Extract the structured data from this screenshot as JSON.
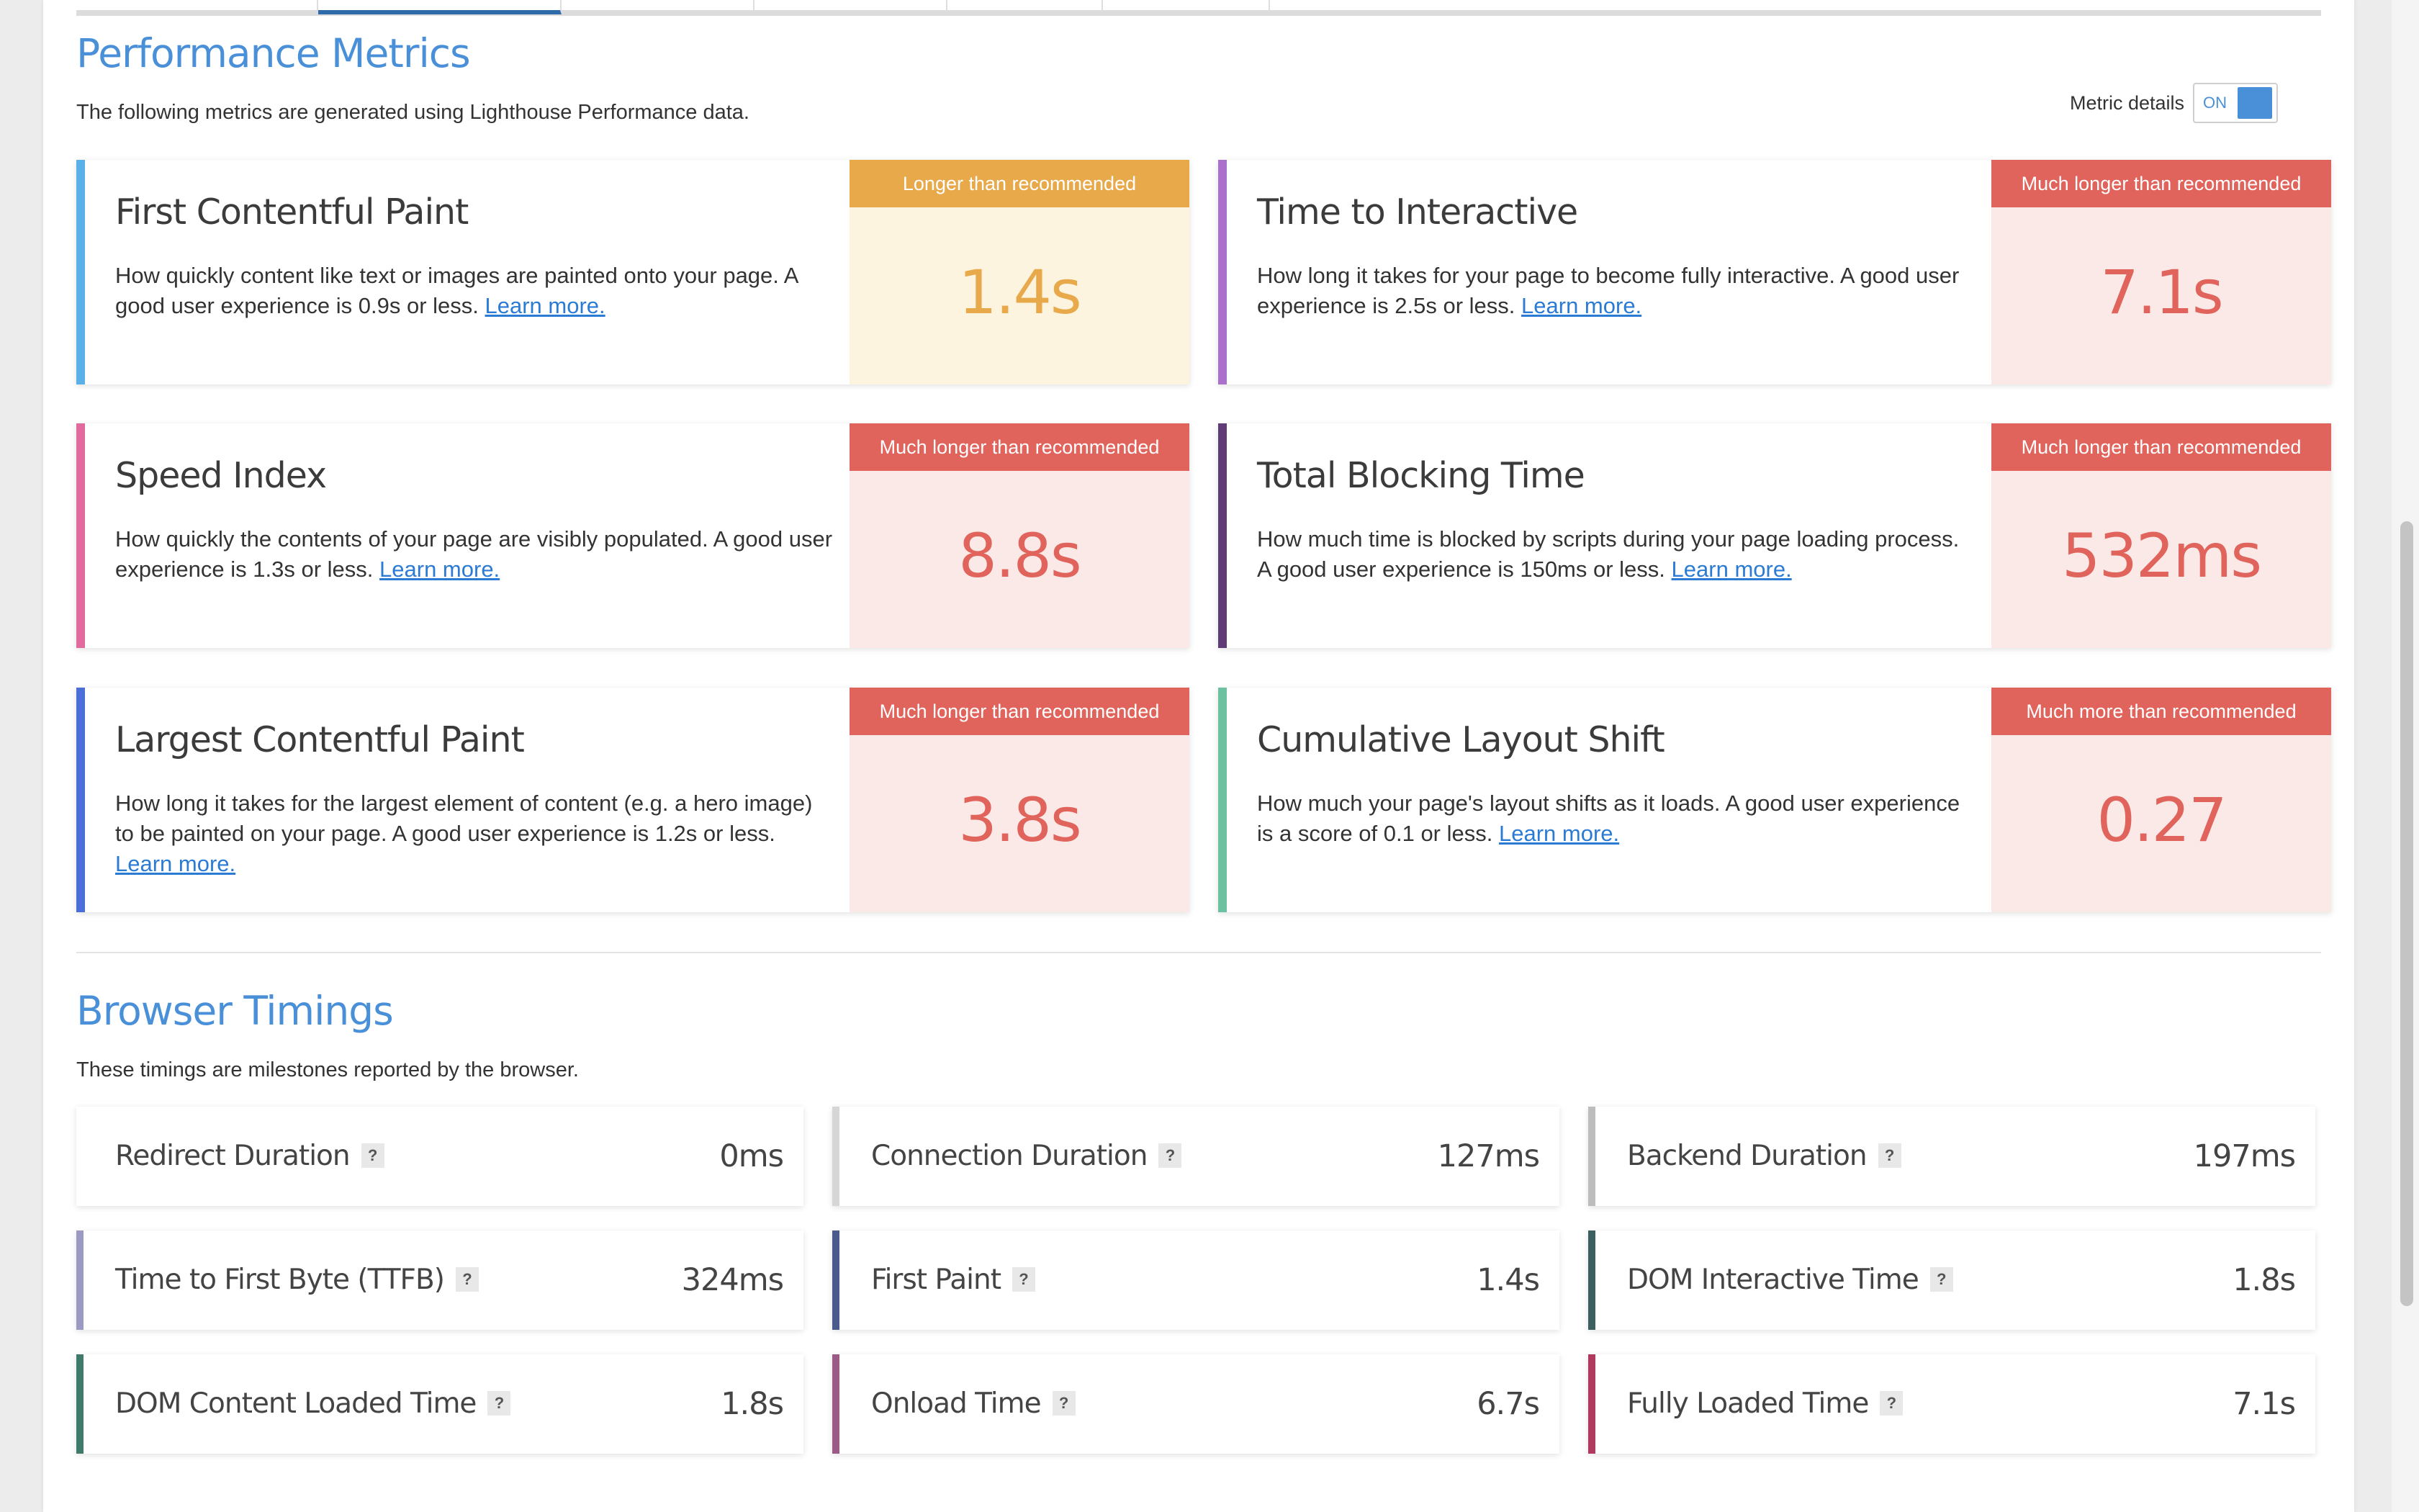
{
  "performance": {
    "title": "Performance Metrics",
    "description": "The following metrics are generated using Lighthouse Performance data.",
    "toggle": {
      "label": "Metric details",
      "state": "ON"
    },
    "learn_more": "Learn more.",
    "metrics": [
      {
        "title": "First Contentful Paint",
        "description": "How quickly content like text or images are painted onto your page. A good user experience is 0.9s or less.",
        "badge": "Longer than recommended",
        "value": "1.4s"
      },
      {
        "title": "Time to Interactive",
        "description": "How long it takes for your page to become fully interactive. A good user experience is 2.5s or less.",
        "badge": "Much longer than recommended",
        "value": "7.1s"
      },
      {
        "title": "Speed Index",
        "description": "How quickly the contents of your page are visibly populated. A good user experience is 1.3s or less.",
        "badge": "Much longer than recommended",
        "value": "8.8s"
      },
      {
        "title": "Total Blocking Time",
        "description": "How much time is blocked by scripts during your page loading process. A good user experience is 150ms or less.",
        "badge": "Much longer than recommended",
        "value": "532ms"
      },
      {
        "title": "Largest Contentful Paint",
        "description": "How long it takes for the largest element of content (e.g. a hero image) to be painted on your page. A good user experience is 1.2s or less.",
        "badge": "Much longer than recommended",
        "value": "3.8s"
      },
      {
        "title": "Cumulative Layout Shift",
        "description": "How much your page's layout shifts as it loads. A good user experience is a score of 0.1 or less.",
        "badge": "Much more than recommended",
        "value": "0.27"
      }
    ]
  },
  "timings": {
    "title": "Browser Timings",
    "description": "These timings are milestones reported by the browser.",
    "help_glyph": "?",
    "items": [
      {
        "name": "Redirect Duration",
        "value": "0ms"
      },
      {
        "name": "Connection Duration",
        "value": "127ms"
      },
      {
        "name": "Backend Duration",
        "value": "197ms"
      },
      {
        "name": "Time to First Byte (TTFB)",
        "value": "324ms"
      },
      {
        "name": "First Paint",
        "value": "1.4s"
      },
      {
        "name": "DOM Interactive Time",
        "value": "1.8s"
      },
      {
        "name": "DOM Content Loaded Time",
        "value": "1.8s"
      },
      {
        "name": "Onload Time",
        "value": "6.7s"
      },
      {
        "name": "Fully Loaded Time",
        "value": "7.1s"
      }
    ]
  },
  "colors": {
    "accent": "#4a90d9",
    "warning": "#e8a94a",
    "warning_bg": "#fdf4e0",
    "danger": "#e0635c",
    "danger_bg": "#fbe9e8"
  }
}
